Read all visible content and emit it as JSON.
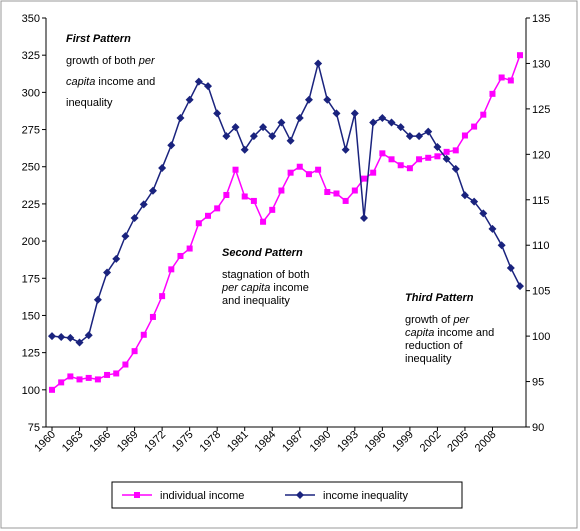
{
  "chart_data": {
    "type": "line",
    "categories": [
      "1960",
      null,
      null,
      "1963",
      null,
      null,
      "1966",
      null,
      null,
      "1969",
      null,
      null,
      "1972",
      null,
      null,
      "1975",
      null,
      null,
      "1978",
      null,
      null,
      "1981",
      null,
      null,
      "1984",
      null,
      null,
      "1987",
      null,
      null,
      "1990",
      null,
      null,
      "1993",
      null,
      null,
      "1996",
      null,
      null,
      "1999",
      null,
      null,
      "2002",
      null,
      null,
      "2005",
      null,
      null,
      "2008",
      null,
      null,
      null
    ],
    "series": [
      {
        "name": "individual income",
        "color": "#ff00ff",
        "marker": "square",
        "values": [
          100,
          105,
          109,
          107,
          108,
          107,
          110,
          111,
          117,
          126,
          137,
          149,
          163,
          181,
          190,
          195,
          212,
          217,
          222,
          231,
          248,
          230,
          227,
          213,
          221,
          234,
          246,
          250,
          245,
          248,
          233,
          232,
          227,
          234,
          242,
          246,
          259,
          255,
          251,
          249,
          255,
          256,
          257,
          260,
          261,
          271,
          277,
          285,
          299,
          310,
          308,
          325
        ]
      },
      {
        "name": "income inequality",
        "color": "#1a237e",
        "marker": "diamond",
        "axis": "y2",
        "values": [
          100,
          99.9,
          99.8,
          99.3,
          100.1,
          104,
          107,
          108.5,
          111,
          113,
          114.5,
          116,
          118.5,
          121,
          124,
          126,
          128,
          127.5,
          124.5,
          122,
          123,
          120.5,
          122,
          123,
          122,
          123.5,
          121.5,
          124,
          126,
          130,
          126,
          124.5,
          120.5,
          124.5,
          113,
          123.5,
          124,
          123.5,
          123,
          122,
          122,
          122.5,
          120.8,
          119.5,
          118.4,
          115.5,
          114.8,
          113.5,
          111.8,
          110,
          107.5,
          105.5
        ]
      }
    ],
    "ylim": [
      75,
      350
    ],
    "yticks": [
      75,
      100,
      125,
      150,
      175,
      200,
      225,
      250,
      275,
      300,
      325,
      350
    ],
    "y2lim": [
      90,
      135
    ],
    "y2ticks": [
      90,
      95,
      100,
      105,
      110,
      115,
      120,
      125,
      130,
      135
    ],
    "annotations": [
      {
        "title": "First Pattern",
        "lines": [
          [
            {
              "text": "growth of both ",
              "italic": false
            },
            {
              "text": "per",
              "italic": true
            }
          ],
          [
            {
              "text": "capita",
              "italic": true
            },
            {
              "text": " income and",
              "italic": false
            }
          ],
          [
            {
              "text": "inequality",
              "italic": false
            }
          ]
        ]
      },
      {
        "title": "Second Pattern",
        "lines": [
          [
            {
              "text": "stagnation of both",
              "italic": false
            }
          ],
          [
            {
              "text": "per  capita",
              "italic": true
            },
            {
              "text": " income",
              "italic": false
            }
          ],
          [
            {
              "text": "and inequality",
              "italic": false
            }
          ]
        ]
      },
      {
        "title": "Third Pattern",
        "lines": [
          [
            {
              "text": "growth of ",
              "italic": false
            },
            {
              "text": "per",
              "italic": true
            }
          ],
          [
            {
              "text": "capita",
              "italic": true
            },
            {
              "text": " income and",
              "italic": false
            }
          ],
          [
            {
              "text": "reduction of",
              "italic": false
            }
          ],
          [
            {
              "text": "inequality",
              "italic": false
            }
          ]
        ]
      }
    ]
  }
}
